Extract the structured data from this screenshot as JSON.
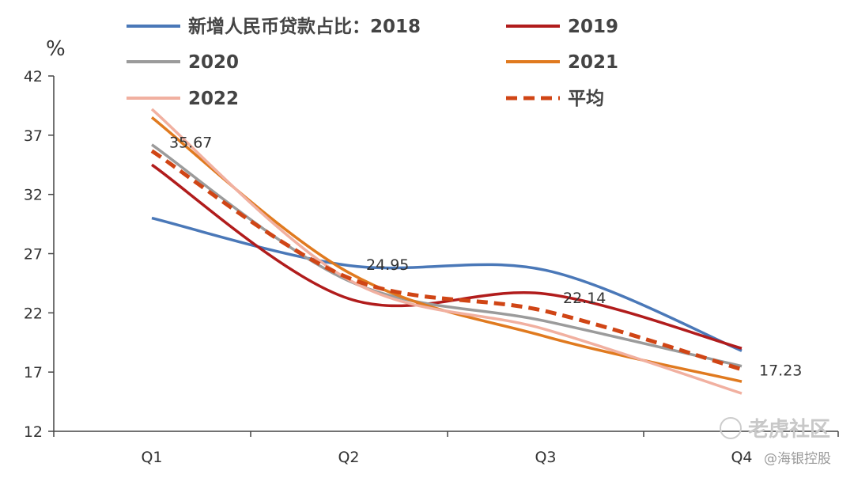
{
  "chart_data": {
    "type": "line",
    "title": "",
    "xlabel": "",
    "ylabel": "%",
    "categories": [
      "Q1",
      "Q2",
      "Q3",
      "Q4"
    ],
    "ylim": [
      12,
      42
    ],
    "yticks": [
      12,
      17,
      22,
      27,
      32,
      37,
      42
    ],
    "grid": false,
    "legend_position": "top",
    "series": [
      {
        "name": "新增人民币贷款占比：2018",
        "values": [
          30.0,
          26.0,
          25.6,
          18.8
        ],
        "color": "#4a78b8",
        "dashed": false
      },
      {
        "name": "2019",
        "values": [
          34.5,
          23.2,
          23.6,
          19.0
        ],
        "color": "#b11c1c",
        "dashed": false
      },
      {
        "name": "2020",
        "values": [
          36.2,
          24.7,
          21.3,
          17.5
        ],
        "color": "#9b9b9b",
        "dashed": false
      },
      {
        "name": "2021",
        "values": [
          38.5,
          25.4,
          20.0,
          16.2
        ],
        "color": "#e07a1f",
        "dashed": false
      },
      {
        "name": "2022",
        "values": [
          39.2,
          24.8,
          20.6,
          15.2
        ],
        "color": "#f1b0a0",
        "dashed": false
      },
      {
        "name": "平均",
        "values": [
          35.67,
          24.95,
          22.14,
          17.23
        ],
        "color": "#d04515",
        "dashed": true
      }
    ],
    "data_labels": [
      "35.67",
      "24.95",
      "22.14",
      "17.23"
    ]
  },
  "watermark": {
    "site": "老虎社区",
    "author": "@海银控股"
  }
}
